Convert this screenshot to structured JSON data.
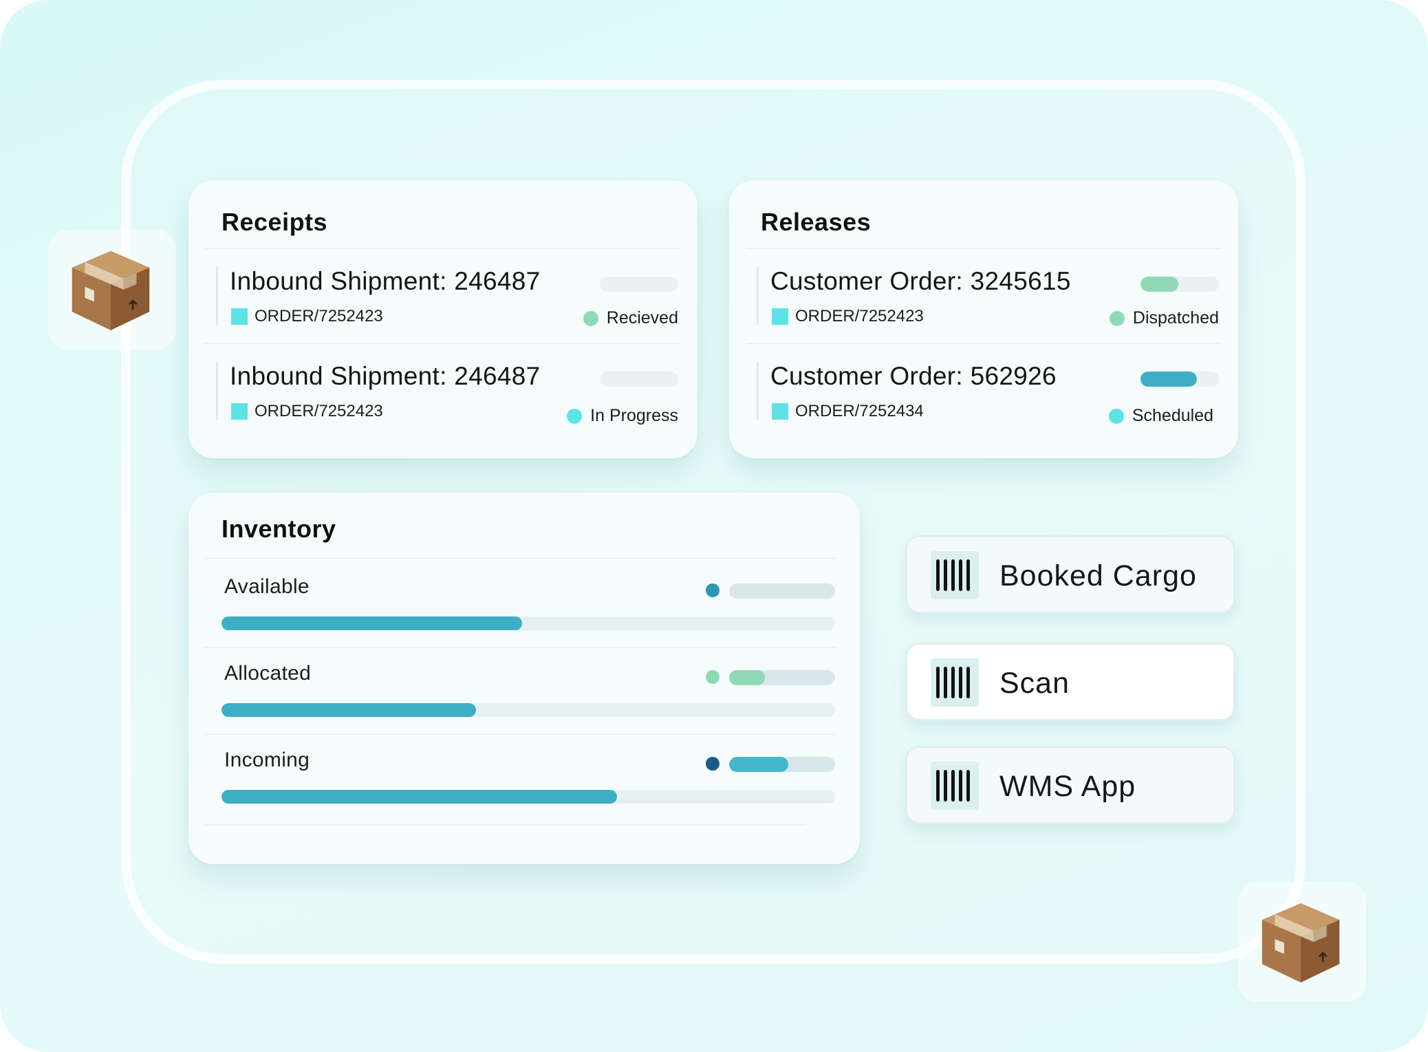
{
  "receipts": {
    "title": "Receipts",
    "rows": [
      {
        "title": "Inbound Shipment: 246487",
        "order": "ORDER/7252423",
        "status": "Recieved",
        "status_color": "#8fd9b6",
        "progress": 0,
        "progress_color": "#8fd9b6"
      },
      {
        "title": "Inbound Shipment: 246487",
        "order": "ORDER/7252423",
        "status": "In Progress",
        "status_color": "#5de3e6",
        "progress": 0,
        "progress_color": "#5de3e6"
      }
    ]
  },
  "releases": {
    "title": "Releases",
    "rows": [
      {
        "title": "Customer Order: 3245615",
        "order": "ORDER/7252423",
        "status": "Dispatched",
        "status_color": "#8fd9b6",
        "progress": 0.48,
        "progress_color": "#8fd9b6"
      },
      {
        "title": "Customer Order: 562926",
        "order": "ORDER/7252434",
        "status": "Scheduled",
        "status_color": "#5de3e6",
        "progress": 0.72,
        "progress_color": "#3eaec4"
      }
    ]
  },
  "inventory": {
    "title": "Inventory",
    "rows": [
      {
        "label": "Available",
        "dot_color": "#2e95b5",
        "level": 0.49,
        "indicator": 0,
        "indicator_color": "#3eaec4"
      },
      {
        "label": "Allocated",
        "dot_color": "#8fd9b6",
        "level": 0.415,
        "indicator": 0.34,
        "indicator_color": "#8fd9b6"
      },
      {
        "label": "Incoming",
        "dot_color": "#1a5b86",
        "level": 0.645,
        "indicator": 0.56,
        "indicator_color": "#46b6cc"
      }
    ]
  },
  "actions": [
    {
      "label": "Booked Cargo",
      "icon": "barcode-icon"
    },
    {
      "label": "Scan",
      "icon": "barcode-icon"
    },
    {
      "label": "WMS App",
      "icon": "barcode-icon"
    }
  ],
  "decor": {
    "icon": "cardboard-box-icon"
  }
}
